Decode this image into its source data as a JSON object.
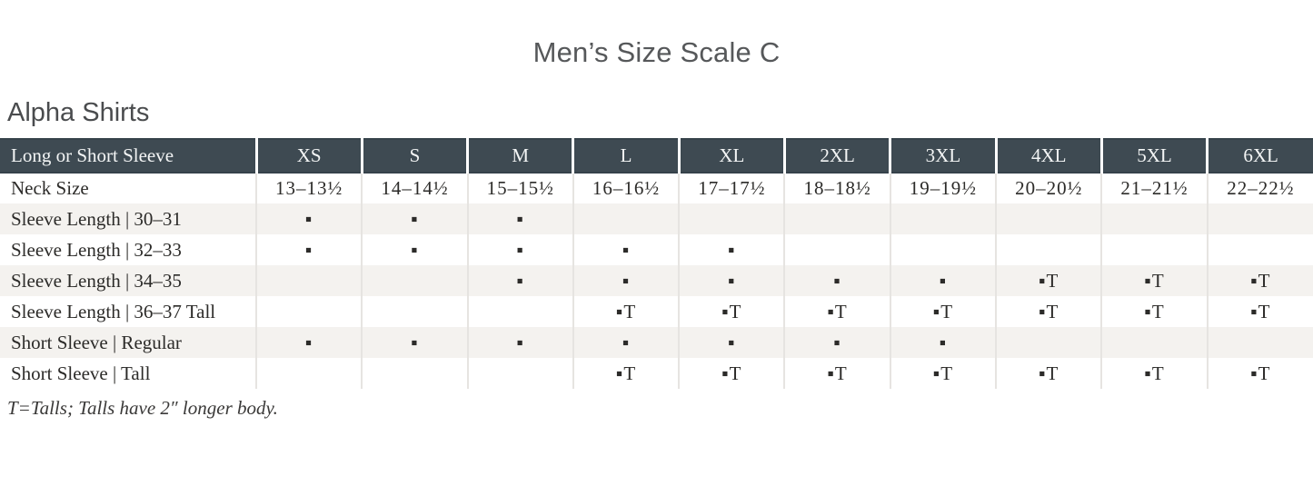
{
  "page": {
    "title": "Men’s Size Scale C",
    "section_heading": "Alpha Shirts",
    "footnote": "T=Talls; Talls have 2″ longer body."
  },
  "table": {
    "columns": [
      "Long or Short Sleeve",
      "XS",
      "S",
      "M",
      "L",
      "XL",
      "2XL",
      "3XL",
      "4XL",
      "5XL",
      "6XL"
    ],
    "legend": {
      "available_marker": "▪",
      "tall_marker": "▪T"
    },
    "rows": [
      {
        "label": "Neck Size",
        "cells": [
          "13–13½",
          "14–14½",
          "15–15½",
          "16–16½",
          "17–17½",
          "18–18½",
          "19–19½",
          "20–20½",
          "21–21½",
          "22–22½"
        ]
      },
      {
        "label": "Sleeve Length | 30–31",
        "cells": [
          "▪",
          "▪",
          "▪",
          "",
          "",
          "",
          "",
          "",
          "",
          ""
        ]
      },
      {
        "label": "Sleeve Length | 32–33",
        "cells": [
          "▪",
          "▪",
          "▪",
          "▪",
          "▪",
          "",
          "",
          "",
          "",
          ""
        ]
      },
      {
        "label": "Sleeve Length | 34–35",
        "cells": [
          "",
          "",
          "▪",
          "▪",
          "▪",
          "▪",
          "▪",
          "▪T",
          "▪T",
          "▪T"
        ]
      },
      {
        "label": "Sleeve Length | 36–37 Tall",
        "cells": [
          "",
          "",
          "",
          "▪T",
          "▪T",
          "▪T",
          "▪T",
          "▪T",
          "▪T",
          "▪T"
        ]
      },
      {
        "label": "Short Sleeve | Regular",
        "cells": [
          "▪",
          "▪",
          "▪",
          "▪",
          "▪",
          "▪",
          "▪",
          "",
          "",
          ""
        ]
      },
      {
        "label": "Short Sleeve | Tall",
        "cells": [
          "",
          "",
          "",
          "▪T",
          "▪T",
          "▪T",
          "▪T",
          "▪T",
          "▪T",
          "▪T"
        ]
      }
    ]
  },
  "colors": {
    "header_bg": "#3e4a52",
    "header_text": "#f3f5f5",
    "stripe_bg": "#f4f2ef",
    "body_text": "#2c2b29",
    "grid_line": "#e6e4e1",
    "title_text": "#56585a"
  }
}
